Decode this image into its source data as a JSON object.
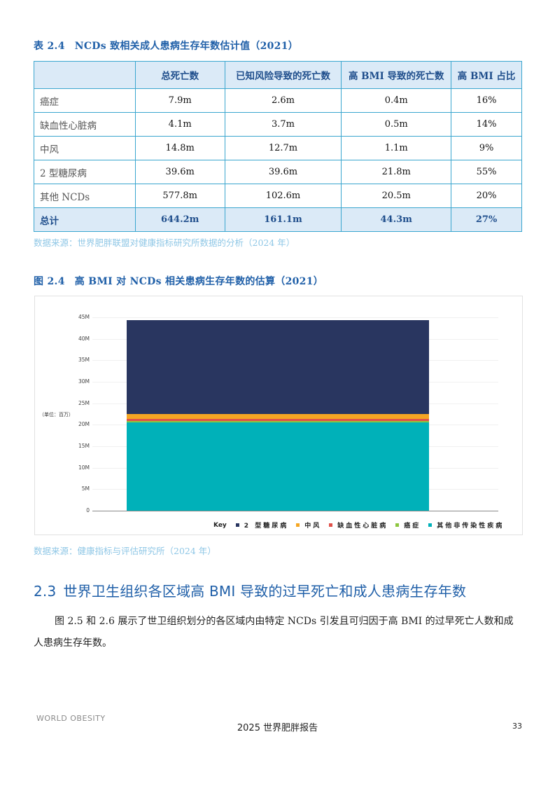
{
  "table": {
    "caption_number": "表 2.4",
    "caption_title": "NCDs 致相关成人患病生存年数估计值（2021）",
    "columns": [
      "",
      "总死亡数",
      "已知风险导致的死亡数",
      "高 BMI 导致的死亡数",
      "高 BMI 占比"
    ],
    "rows": [
      {
        "label": "癌症",
        "total": "7.9m",
        "known_risk": "2.6m",
        "high_bmi": "0.4m",
        "share": "16%"
      },
      {
        "label": "缺血性心脏病",
        "total": "4.1m",
        "known_risk": "3.7m",
        "high_bmi": "0.5m",
        "share": "14%"
      },
      {
        "label": "中风",
        "total": "14.8m",
        "known_risk": "12.7m",
        "high_bmi": "1.1m",
        "share": "9%"
      },
      {
        "label": "2 型糖尿病",
        "total": "39.6m",
        "known_risk": "39.6m",
        "high_bmi": "21.8m",
        "share": "55%"
      },
      {
        "label": "其他 NCDs",
        "total": "577.8m",
        "known_risk": "102.6m",
        "high_bmi": "20.5m",
        "share": "20%"
      }
    ],
    "total_row": {
      "label": "总计",
      "total": "644.2m",
      "known_risk": "161.1m",
      "high_bmi": "44.3m",
      "share": "27%"
    },
    "source": "数据来源：世界肥胖联盟对健康指标研究所数据的分析（2024 年）"
  },
  "figure": {
    "caption_number": "图 2.4",
    "caption_title": "高 BMI 对 NCDs 相关患病生存年数的估算（2021）",
    "unit_label": "（单位：百万）",
    "legend_key": "Key",
    "source": "数据来源：健康指标与评估研究所（2024 年）"
  },
  "chart_data": {
    "type": "bar",
    "stacked": true,
    "title": "高 BMI 对 NCDs 相关患病生存年数的估算（2021）",
    "xlabel": "",
    "ylabel": "（单位：百万）",
    "ylim": [
      0,
      45
    ],
    "yticks": [
      "0",
      "5M",
      "10M",
      "15M",
      "20M",
      "25M",
      "30M",
      "35M",
      "40M",
      "45M"
    ],
    "grid": true,
    "legend_position": "bottom-right",
    "categories": [
      ""
    ],
    "series": [
      {
        "name": "其他非传染性疾病",
        "color": "#00b1b9",
        "values": [
          20.5
        ]
      },
      {
        "name": "癌症",
        "color": "#8dc63f",
        "values": [
          0.4
        ]
      },
      {
        "name": "缺血性心脏病",
        "color": "#e0514a",
        "values": [
          0.5
        ]
      },
      {
        "name": "中风",
        "color": "#f5a623",
        "values": [
          1.1
        ]
      },
      {
        "name": "2 型糖尿病",
        "color": "#293660",
        "values": [
          21.8
        ]
      }
    ],
    "legend_order": [
      "2 型糖尿病",
      "中风",
      "缺血性心脏病",
      "癌症",
      "其他非传染性疾病"
    ]
  },
  "section": {
    "number": "2.3",
    "title": "世界卫生组织各区域高 BMI 导致的过早死亡和成人患病生存年数",
    "body": "图 2.5 和 2.6 展示了世卫组织划分的各区域内由特定 NCDs 引发且可归因于高 BMI 的过早死亡人数和成人患病生存年数。"
  },
  "footer": {
    "logo_text": "WORLD OBESITY",
    "title": "2025 世界肥胖报告",
    "page_number": "33"
  }
}
